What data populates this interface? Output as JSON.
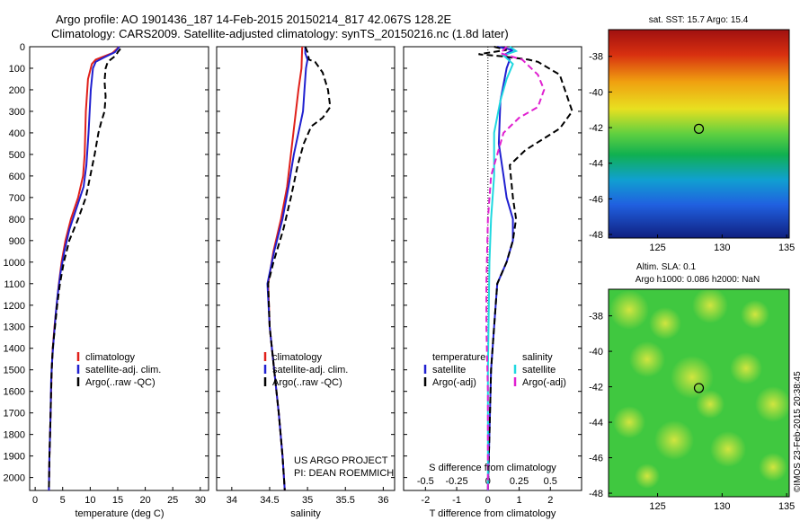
{
  "header": {
    "line1": "Argo profile: AO 1901436_187 14-Feb-2015 20150214_817 42.067S 128.2E",
    "line2": "Climatology: CARS2009. Satellite-adjusted climatology: synTS_20150216.nc (1.8d later)"
  },
  "colors": {
    "climatology": "#e0201a",
    "satellite": "#2020d0",
    "argo": "#000000",
    "satellite_s": "#20d8e0",
    "argo_s": "#e020d0"
  },
  "depth_ticks": [
    "0",
    "100",
    "200",
    "300",
    "400",
    "500",
    "600",
    "700",
    "800",
    "900",
    "1000",
    "1100",
    "1200",
    "1300",
    "1400",
    "1500",
    "1600",
    "1700",
    "1800",
    "1900",
    "2000"
  ],
  "chart_data": [
    {
      "id": "temperature",
      "type": "line",
      "xlabel": "temperature (deg C)",
      "xlim": [
        -1,
        31.5
      ],
      "ylim": [
        2060,
        0
      ],
      "xticks": [
        "0",
        "5",
        "10",
        "15",
        "20",
        "25",
        "30"
      ],
      "legend": [
        "climatology",
        "satellite-adj. clim.",
        "Argo(..raw -QC)"
      ],
      "series": [
        {
          "name": "climatology",
          "color": "#e0201a",
          "dash": false,
          "points": [
            [
              15.3,
              0
            ],
            [
              14,
              30
            ],
            [
              11,
              60
            ],
            [
              10.3,
              80
            ],
            [
              9.6,
              150
            ],
            [
              9.2,
              300
            ],
            [
              9,
              500
            ],
            [
              8.7,
              600
            ],
            [
              7.8,
              700
            ],
            [
              6.5,
              800
            ],
            [
              5.5,
              900
            ],
            [
              4.8,
              1000
            ],
            [
              4.3,
              1100
            ],
            [
              3.9,
              1200
            ],
            [
              3.5,
              1300
            ],
            [
              3.2,
              1400
            ],
            [
              3,
              1500
            ],
            [
              2.9,
              1600
            ],
            [
              2.8,
              1700
            ],
            [
              2.7,
              1800
            ],
            [
              2.6,
              1900
            ],
            [
              2.5,
              2060
            ]
          ]
        },
        {
          "name": "satellite-adj. clim.",
          "color": "#2020d0",
          "dash": false,
          "points": [
            [
              15.3,
              0
            ],
            [
              14.5,
              25
            ],
            [
              12.5,
              50
            ],
            [
              11,
              70
            ],
            [
              10.5,
              100
            ],
            [
              10.1,
              200
            ],
            [
              9.7,
              400
            ],
            [
              9.3,
              550
            ],
            [
              8.8,
              650
            ],
            [
              7.5,
              750
            ],
            [
              6.2,
              850
            ],
            [
              5.3,
              950
            ],
            [
              4.6,
              1050
            ],
            [
              4.1,
              1150
            ],
            [
              3.7,
              1250
            ],
            [
              3.4,
              1350
            ],
            [
              3.1,
              1450
            ],
            [
              2.9,
              1550
            ],
            [
              2.8,
              1700
            ],
            [
              2.7,
              1800
            ],
            [
              2.6,
              1900
            ],
            [
              2.5,
              2060
            ]
          ]
        },
        {
          "name": "Argo(..raw -QC)",
          "color": "#000000",
          "dash": true,
          "points": [
            [
              15.5,
              10
            ],
            [
              15,
              25
            ],
            [
              14.7,
              40
            ],
            [
              13.2,
              70
            ],
            [
              12.8,
              100
            ],
            [
              12.6,
              160
            ],
            [
              12.8,
              230
            ],
            [
              12.6,
              300
            ],
            [
              12,
              350
            ],
            [
              11.5,
              400
            ],
            [
              10.8,
              500
            ],
            [
              10,
              600
            ],
            [
              9.2,
              700
            ],
            [
              7.8,
              800
            ],
            [
              6.2,
              900
            ],
            [
              5.2,
              1000
            ],
            [
              4.5,
              1100
            ],
            [
              4,
              1200
            ],
            [
              3.6,
              1300
            ],
            [
              3.2,
              1400
            ],
            [
              3,
              1500
            ],
            [
              2.9,
              1600
            ],
            [
              2.8,
              1700
            ],
            [
              2.7,
              1800
            ],
            [
              2.6,
              1900
            ],
            [
              2.5,
              2060
            ]
          ]
        }
      ]
    },
    {
      "id": "salinity",
      "type": "line",
      "xlabel": "salinity",
      "xlim": [
        33.8,
        36.15
      ],
      "ylim": [
        2060,
        0
      ],
      "xticks": [
        "34",
        "34.5",
        "35",
        "35.5",
        "36"
      ],
      "legend": [
        "climatology",
        "satellite-adj. clim.",
        "Argo(..raw -QC)"
      ],
      "credit": [
        "US ARGO PROJECT",
        "PI: DEAN ROEMMICH"
      ],
      "series": [
        {
          "name": "climatology",
          "color": "#e0201a",
          "dash": false,
          "points": [
            [
              34.93,
              0
            ],
            [
              34.92,
              100
            ],
            [
              34.88,
              200
            ],
            [
              34.83,
              350
            ],
            [
              34.78,
              500
            ],
            [
              34.73,
              650
            ],
            [
              34.65,
              800
            ],
            [
              34.55,
              950
            ],
            [
              34.48,
              1100
            ],
            [
              34.5,
              1300
            ],
            [
              34.56,
              1500
            ],
            [
              34.62,
              1700
            ],
            [
              34.67,
              1900
            ],
            [
              34.7,
              2060
            ]
          ]
        },
        {
          "name": "satellite-adj. clim.",
          "color": "#2020d0",
          "dash": false,
          "points": [
            [
              34.97,
              0
            ],
            [
              34.97,
              30
            ],
            [
              35,
              60
            ],
            [
              34.98,
              100
            ],
            [
              34.96,
              200
            ],
            [
              34.94,
              300
            ],
            [
              34.88,
              400
            ],
            [
              34.82,
              500
            ],
            [
              34.75,
              650
            ],
            [
              34.67,
              800
            ],
            [
              34.56,
              950
            ],
            [
              34.47,
              1100
            ],
            [
              34.5,
              1300
            ],
            [
              34.56,
              1500
            ],
            [
              34.62,
              1700
            ],
            [
              34.67,
              1900
            ],
            [
              34.7,
              2060
            ]
          ]
        },
        {
          "name": "Argo(..raw -QC)",
          "color": "#000000",
          "dash": true,
          "points": [
            [
              34.97,
              0
            ],
            [
              35,
              25
            ],
            [
              35.02,
              60
            ],
            [
              35.1,
              70
            ],
            [
              35.2,
              120
            ],
            [
              35.27,
              200
            ],
            [
              35.3,
              280
            ],
            [
              35.2,
              330
            ],
            [
              35.05,
              370
            ],
            [
              34.95,
              450
            ],
            [
              34.87,
              550
            ],
            [
              34.78,
              700
            ],
            [
              34.68,
              850
            ],
            [
              34.55,
              1000
            ],
            [
              34.48,
              1100
            ],
            [
              34.5,
              1300
            ],
            [
              34.56,
              1500
            ],
            [
              34.62,
              1700
            ],
            [
              34.67,
              1900
            ],
            [
              34.7,
              2060
            ]
          ]
        }
      ]
    },
    {
      "id": "difference",
      "type": "line",
      "xlabel": "T difference from climatology",
      "xlabel_top": "S difference from climatology",
      "xlim": [
        -2.7,
        3.0
      ],
      "ylim": [
        2060,
        0
      ],
      "xticks": [
        "-2",
        "-1",
        "0",
        "1",
        "2"
      ],
      "xticks_s": [
        "-0.5",
        "-0.25",
        "0",
        "0.25",
        "0.5"
      ],
      "legend_t": {
        "title": "temperature",
        "items": [
          "satellite",
          "Argo(-adj)"
        ]
      },
      "legend_s": {
        "title": "salinity",
        "items": [
          "satellite",
          "Argo(-adj)"
        ]
      },
      "series": [
        {
          "name": "satellite",
          "color": "#2020d0",
          "dash": false,
          "points": [
            [
              0.3,
              0
            ],
            [
              0.8,
              15
            ],
            [
              0.5,
              40
            ],
            [
              0.7,
              60
            ],
            [
              0.6,
              100
            ],
            [
              0.4,
              250
            ],
            [
              0.35,
              450
            ],
            [
              0.5,
              600
            ],
            [
              0.6,
              700
            ],
            [
              0.8,
              800
            ],
            [
              0.8,
              900
            ],
            [
              0.6,
              1000
            ],
            [
              0.3,
              1100
            ],
            [
              0.2,
              1300
            ],
            [
              0.1,
              1500
            ],
            [
              0.05,
              1800
            ],
            [
              0,
              2060
            ]
          ]
        },
        {
          "name": "Argo(-adj)",
          "color": "#000000",
          "dash": true,
          "points": [
            [
              0.2,
              0
            ],
            [
              0.6,
              15
            ],
            [
              -0.3,
              35
            ],
            [
              0.5,
              45
            ],
            [
              1.3,
              60
            ],
            [
              1.6,
              70
            ],
            [
              2.3,
              130
            ],
            [
              2.7,
              300
            ],
            [
              2.3,
              380
            ],
            [
              1.2,
              480
            ],
            [
              0.7,
              550
            ],
            [
              0.8,
              700
            ],
            [
              0.9,
              800
            ],
            [
              0.8,
              900
            ],
            [
              0.6,
              1000
            ],
            [
              0.3,
              1100
            ],
            [
              0.2,
              1300
            ],
            [
              0.1,
              1500
            ],
            [
              0.05,
              1800
            ],
            [
              0,
              2060
            ]
          ]
        },
        {
          "name": "satellite S",
          "color": "#20d8e0",
          "dash": false,
          "points": [
            [
              0.7,
              0
            ],
            [
              0.9,
              20
            ],
            [
              0.5,
              40
            ],
            [
              0.8,
              80
            ],
            [
              0.6,
              150
            ],
            [
              0.4,
              250
            ],
            [
              0.2,
              400
            ],
            [
              0.2,
              600
            ],
            [
              0.1,
              800
            ],
            [
              0.05,
              1000
            ],
            [
              0,
              1500
            ],
            [
              0,
              2060
            ]
          ]
        },
        {
          "name": "Argo(-adj) S",
          "color": "#e020d0",
          "dash": true,
          "points": [
            [
              0.6,
              0
            ],
            [
              0.4,
              30
            ],
            [
              1.1,
              60
            ],
            [
              1.6,
              130
            ],
            [
              1.8,
              200
            ],
            [
              1.6,
              280
            ],
            [
              1.0,
              330
            ],
            [
              0.5,
              400
            ],
            [
              0.3,
              500
            ],
            [
              0.1,
              600
            ],
            [
              0,
              800
            ],
            [
              -0.05,
              1100
            ],
            [
              -0.05,
              1300
            ],
            [
              0,
              1600
            ],
            [
              0,
              2060
            ]
          ]
        }
      ]
    }
  ],
  "maps": {
    "sst": {
      "title": "sat. SST: 15.7 Argo: 15.4",
      "xticks": [
        "125",
        "130",
        "135"
      ],
      "yticks": [
        "-38",
        "-40",
        "-42",
        "-44",
        "-46",
        "-48"
      ],
      "marker_lon": 128.2,
      "marker_lat": -42.067
    },
    "sla": {
      "title1": "Altim. SLA: 0.1",
      "title2": "Argo h1000: 0.086 h2000: NaN",
      "xticks": [
        "125",
        "130",
        "135"
      ],
      "yticks": [
        "-38",
        "-40",
        "-42",
        "-44",
        "-46",
        "-48"
      ],
      "marker_lon": 128.2,
      "marker_lat": -42.067
    }
  },
  "stamp": "©IMOS 23-Feb-2015 20:38:45"
}
